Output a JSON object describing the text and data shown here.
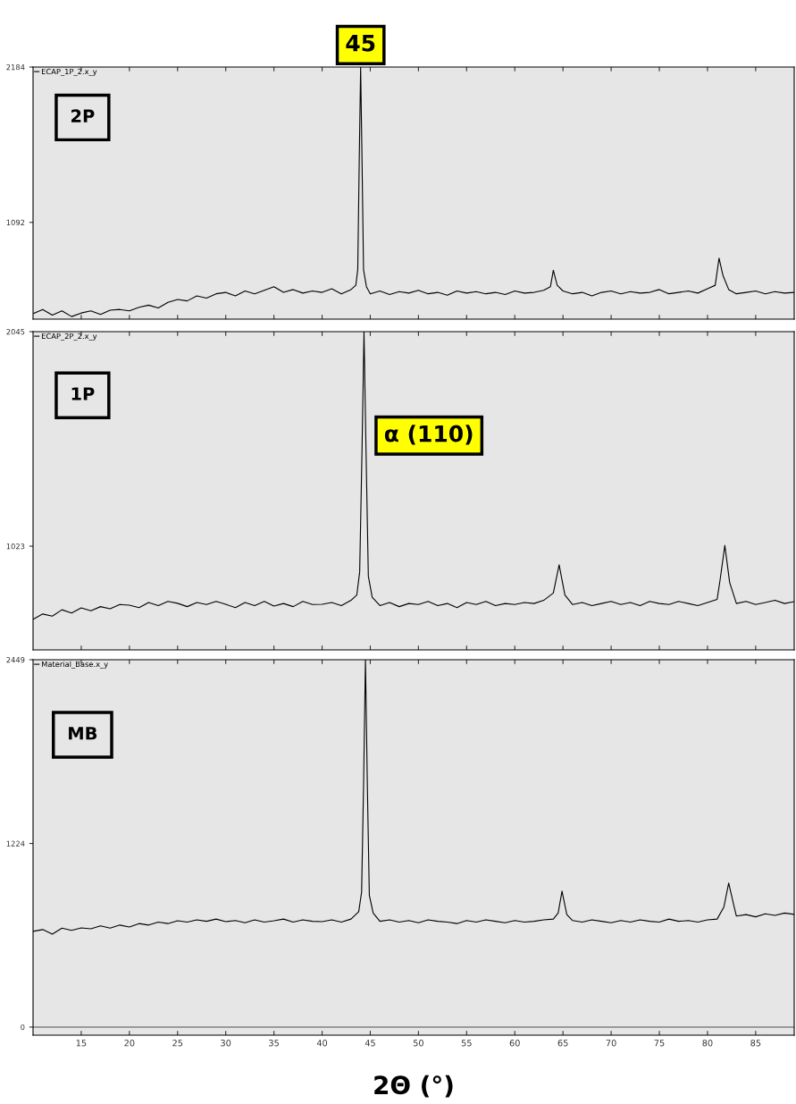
{
  "chart_data": [
    {
      "type": "line",
      "tick_labels": "y",
      "legend": "top left",
      "xlim": [
        10,
        89
      ],
      "xticks": [
        15,
        20,
        25,
        30,
        35,
        40,
        45,
        50,
        55,
        60,
        65,
        70,
        75,
        80,
        85
      ],
      "ylim": [
        412,
        2184
      ],
      "yticks": [
        1092,
        2184
      ],
      "x": [
        10,
        11,
        12,
        13,
        14,
        15,
        16,
        17,
        18,
        19,
        20,
        21,
        22,
        23,
        24,
        25,
        26,
        27,
        28,
        29,
        30,
        31,
        32,
        33,
        34,
        35,
        36,
        37,
        38,
        39,
        40,
        41,
        42,
        43,
        43.5,
        43.7,
        43.85,
        44.0,
        44.15,
        44.3,
        44.6,
        45,
        46,
        47,
        48,
        49,
        50,
        51,
        52,
        53,
        54,
        55,
        56,
        57,
        58,
        59,
        60,
        61,
        62,
        63,
        63.7,
        64.0,
        64.4,
        65,
        66,
        67,
        68,
        69,
        70,
        71,
        72,
        73,
        74,
        75,
        76,
        77,
        78,
        79,
        80,
        80.8,
        81.2,
        81.6,
        82.2,
        83,
        84,
        85,
        86,
        87,
        88,
        89
      ],
      "series": [
        {
          "name": "ECAP_1P_2.x_y",
          "color": "#000000",
          "values": [
            450,
            480,
            440,
            470,
            430,
            455,
            470,
            445,
            475,
            480,
            470,
            495,
            510,
            490,
            530,
            550,
            540,
            575,
            560,
            590,
            600,
            575,
            610,
            590,
            615,
            640,
            600,
            620,
            595,
            610,
            600,
            625,
            590,
            620,
            650,
            760,
            1500,
            2184,
            1500,
            760,
            640,
            590,
            610,
            585,
            605,
            595,
            615,
            590,
            600,
            580,
            610,
            595,
            605,
            590,
            600,
            585,
            610,
            595,
            600,
            615,
            640,
            755,
            650,
            610,
            590,
            600,
            575,
            600,
            610,
            590,
            605,
            595,
            600,
            620,
            590,
            600,
            610,
            595,
            625,
            650,
            840,
            720,
            620,
            590,
            600,
            610,
            590,
            605,
            595,
            600
          ]
        }
      ],
      "annotations": [
        "2P",
        {
          "text": "45",
          "x": 44.0,
          "y": 2184
        }
      ]
    },
    {
      "type": "line",
      "tick_labels": "y",
      "legend": "top left",
      "xlim": [
        10,
        89
      ],
      "xticks": [
        15,
        20,
        25,
        30,
        35,
        40,
        45,
        50,
        55,
        60,
        65,
        70,
        75,
        80,
        85
      ],
      "ylim": [
        529,
        2045
      ],
      "yticks": [
        1023,
        2045
      ],
      "x": [
        10,
        11,
        12,
        13,
        14,
        15,
        16,
        17,
        18,
        19,
        20,
        21,
        22,
        23,
        24,
        25,
        26,
        27,
        28,
        29,
        30,
        31,
        32,
        33,
        34,
        35,
        36,
        37,
        38,
        39,
        40,
        41,
        42,
        43,
        43.6,
        43.9,
        44.15,
        44.35,
        44.55,
        44.8,
        45.2,
        46,
        47,
        48,
        49,
        50,
        51,
        52,
        53,
        54,
        55,
        56,
        57,
        58,
        59,
        60,
        61,
        62,
        63,
        64.0,
        64.6,
        65.2,
        66,
        67,
        68,
        69,
        70,
        71,
        72,
        73,
        74,
        75,
        76,
        77,
        78,
        79,
        80,
        81,
        81.3,
        81.8,
        82.3,
        83,
        84,
        85,
        86,
        87,
        88,
        89
      ],
      "series": [
        {
          "name": "ECAP_2P_2.x_y",
          "color": "#000000",
          "values": [
            674,
            700,
            690,
            720,
            705,
            729,
            715,
            735,
            725,
            745,
            742,
            730,
            755,
            740,
            760,
            751,
            735,
            755,
            745,
            760,
            746,
            730,
            755,
            740,
            760,
            738,
            750,
            735,
            760,
            745,
            746,
            755,
            740,
            765,
            790,
            900,
            1500,
            2045,
            1500,
            880,
            780,
            740,
            755,
            735,
            750,
            745,
            760,
            740,
            750,
            730,
            755,
            745,
            760,
            740,
            750,
            745,
            755,
            750,
            765,
            800,
            934,
            790,
            745,
            755,
            740,
            750,
            760,
            745,
            755,
            740,
            760,
            750,
            745,
            760,
            750,
            740,
            755,
            770,
            860,
            1027,
            850,
            750,
            760,
            745,
            755,
            765,
            750,
            759
          ]
        }
      ],
      "annotations": [
        "1P",
        {
          "text": "α (110)",
          "x": 44.35,
          "y": 1550
        }
      ]
    },
    {
      "type": "line",
      "legend": "top left",
      "xlim": [
        10,
        89
      ],
      "xticks": [
        15,
        20,
        25,
        30,
        35,
        40,
        45,
        50,
        55,
        60,
        65,
        70,
        75,
        80,
        85
      ],
      "ylim": [
        -54,
        2449
      ],
      "yticks": [
        0,
        1224,
        2449
      ],
      "xlabel": "2Θ (°)",
      "x": [
        10,
        11,
        12,
        13,
        14,
        15,
        16,
        17,
        18,
        19,
        20,
        21,
        22,
        23,
        24,
        25,
        26,
        27,
        28,
        29,
        30,
        31,
        32,
        33,
        34,
        35,
        36,
        37,
        38,
        39,
        40,
        41,
        42,
        43,
        43.8,
        44.1,
        44.3,
        44.5,
        44.7,
        44.9,
        45.3,
        46,
        47,
        48,
        49,
        50,
        51,
        52,
        53,
        54,
        55,
        56,
        57,
        58,
        59,
        60,
        61,
        62,
        63,
        64,
        64.5,
        64.9,
        65.4,
        66,
        67,
        68,
        69,
        70,
        71,
        72,
        73,
        74,
        75,
        76,
        77,
        78,
        79,
        80,
        81,
        81.7,
        82.2,
        82.7,
        83,
        84,
        85,
        86,
        87,
        88,
        89
      ],
      "series": [
        {
          "name": "Material_Base.x_y",
          "color": "#000000",
          "values": [
            638,
            650,
            620,
            660,
            645,
            661,
            655,
            675,
            660,
            680,
            667,
            690,
            680,
            700,
            690,
            709,
            700,
            715,
            705,
            720,
            703,
            710,
            695,
            715,
            700,
            709,
            720,
            700,
            715,
            705,
            703,
            715,
            700,
            720,
            769,
            900,
            1600,
            2449,
            1600,
            880,
            760,
            705,
            715,
            700,
            710,
            695,
            715,
            705,
            700,
            690,
            710,
            700,
            715,
            705,
            695,
            710,
            700,
            705,
            715,
            720,
            760,
            906,
            750,
            710,
            700,
            715,
            705,
            695,
            710,
            700,
            715,
            705,
            700,
            720,
            705,
            710,
            700,
            715,
            720,
            800,
            960,
            820,
            740,
            750,
            735,
            755,
            745,
            760,
            751
          ]
        }
      ],
      "ref_lines": [
        {
          "axis": "y",
          "value": 0,
          "color": "#808080"
        }
      ],
      "annotations": [
        "MB"
      ]
    }
  ]
}
